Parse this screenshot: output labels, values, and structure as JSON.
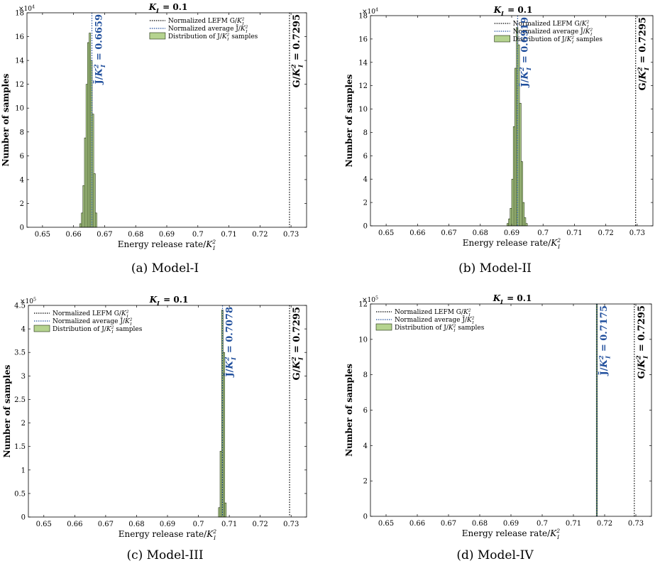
{
  "chart_data": [
    {
      "type": "bar",
      "title": "K_I = 0.1",
      "caption": "(a) Model-I",
      "xlabel": "Energy release rate/K_I^2",
      "ylabel": "Number of samples",
      "xlim": [
        0.645,
        0.735
      ],
      "xticks": [
        "0.65",
        "0.66",
        "0.67",
        "0.68",
        "0.69",
        "0.7",
        "0.71",
        "0.72",
        "0.73"
      ],
      "ylim": [
        0,
        18
      ],
      "yticks": [
        "0",
        "2",
        "4",
        "6",
        "8",
        "10",
        "12",
        "14",
        "16",
        "18"
      ],
      "y_multiplier": "×10^4",
      "legend": [
        "Normalized LEFM G/K_I^2",
        "Normalized average J̄/K_I^2",
        "Distribution of J/K_I^2 samples"
      ],
      "legend_position": "top-right",
      "lefm_value": 0.7295,
      "lefm_annotation": "G/K_I^2 = 0.7295",
      "avg_value": 0.6659,
      "avg_annotation": "J̄/K_I^2 = 0.6659",
      "bar_width": 0.0005,
      "bins": [
        0.66225,
        0.66275,
        0.66325,
        0.66375,
        0.66425,
        0.66475,
        0.66525,
        0.66575,
        0.66625,
        0.66675,
        0.66725
      ],
      "values": [
        0.3,
        1.2,
        3.5,
        7.5,
        12,
        15.5,
        16.3,
        14,
        9.5,
        4.5,
        1.2
      ]
    },
    {
      "type": "bar",
      "title": "K_I = 0.1",
      "caption": "(b) Model-II",
      "xlabel": "Energy release rate/K_I^2",
      "ylabel": "Number of samples",
      "xlim": [
        0.645,
        0.735
      ],
      "xticks": [
        "0.65",
        "0.66",
        "0.67",
        "0.68",
        "0.69",
        "0.7",
        "0.71",
        "0.72",
        "0.73"
      ],
      "ylim": [
        0,
        18
      ],
      "yticks": [
        "0",
        "2",
        "4",
        "6",
        "8",
        "10",
        "12",
        "14",
        "16",
        "18"
      ],
      "y_multiplier": "×10^4",
      "legend": [
        "Normalized LEFM G/K_I^2",
        "Normalized average J̄/K_I^2",
        "Distribution of J/K_I^2 samples"
      ],
      "legend_position": "top-right",
      "lefm_value": 0.7295,
      "lefm_annotation": "G/K_I^2 = 0.7295",
      "avg_value": 0.6919,
      "avg_annotation": "J̄/K_I^2 = 0.6919",
      "bar_width": 0.0005,
      "bins": [
        0.68875,
        0.68925,
        0.68975,
        0.69025,
        0.69075,
        0.69125,
        0.69175,
        0.69225,
        0.69275,
        0.69325,
        0.69375,
        0.69425,
        0.69475
      ],
      "values": [
        0.2,
        0.6,
        1.5,
        4,
        8.5,
        13.5,
        17,
        15.5,
        10.5,
        5.5,
        2,
        0.7,
        0.2
      ]
    },
    {
      "type": "bar",
      "title": "K_I = 0.1",
      "caption": "(c) Model-III",
      "xlabel": "Energy release rate/K_I^2",
      "ylabel": "Number of samples",
      "xlim": [
        0.645,
        0.735
      ],
      "xticks": [
        "0.65",
        "0.66",
        "0.67",
        "0.68",
        "0.69",
        "0.7",
        "0.71",
        "0.72",
        "0.73"
      ],
      "ylim": [
        0,
        4.5
      ],
      "yticks": [
        "0",
        "0.5",
        "1",
        "1.5",
        "2",
        "2.5",
        "3",
        "3.5",
        "4",
        "4.5"
      ],
      "y_multiplier": "×10^5",
      "legend": [
        "Normalized LEFM G/K_I^2",
        "Normalized average J̄/K_I^2",
        "Distribution of J/K_I^2 samples"
      ],
      "legend_position": "top-left",
      "lefm_value": 0.7295,
      "lefm_annotation": "G/K_I^2 = 0.7295",
      "avg_value": 0.7078,
      "avg_annotation": "J̄/K_I^2 = 0.7078",
      "bar_width": 0.0005,
      "bins": [
        0.70675,
        0.70725,
        0.70775,
        0.70825,
        0.70875
      ],
      "values": [
        0.2,
        1.4,
        4.4,
        3.5,
        0.3
      ]
    },
    {
      "type": "bar",
      "title": "K_I = 0.1",
      "caption": "(d) Model-IV",
      "xlabel": "Energy release rate/K_I^2",
      "ylabel": "Number of samples",
      "xlim": [
        0.645,
        0.735
      ],
      "xticks": [
        "0.65",
        "0.66",
        "0.67",
        "0.68",
        "0.69",
        "0.7",
        "0.71",
        "0.72",
        "0.73"
      ],
      "ylim": [
        0,
        12
      ],
      "yticks": [
        "0",
        "2",
        "4",
        "6",
        "8",
        "10",
        "12"
      ],
      "y_multiplier": "×10^5",
      "legend": [
        "Normalized LEFM G/K_I^2",
        "Normalized average J̄/K_I^2",
        "Distribution of J/K_I^2 samples"
      ],
      "legend_position": "top-left",
      "lefm_value": 0.7295,
      "lefm_annotation": "G/K_I^2 = 0.7295",
      "avg_value": 0.7175,
      "avg_annotation": "J̄/K_I^2 = 0.7175",
      "bar_width": 0.00035,
      "bins": [
        0.7175
      ],
      "values": [
        12
      ]
    }
  ],
  "colors": {
    "bar_fill": "#b5d38f",
    "bar_edge": "#1a2a0a",
    "lefm_line": "#000000",
    "avg_line": "#1f4e9c",
    "avg_text": "#1f4e9c"
  }
}
